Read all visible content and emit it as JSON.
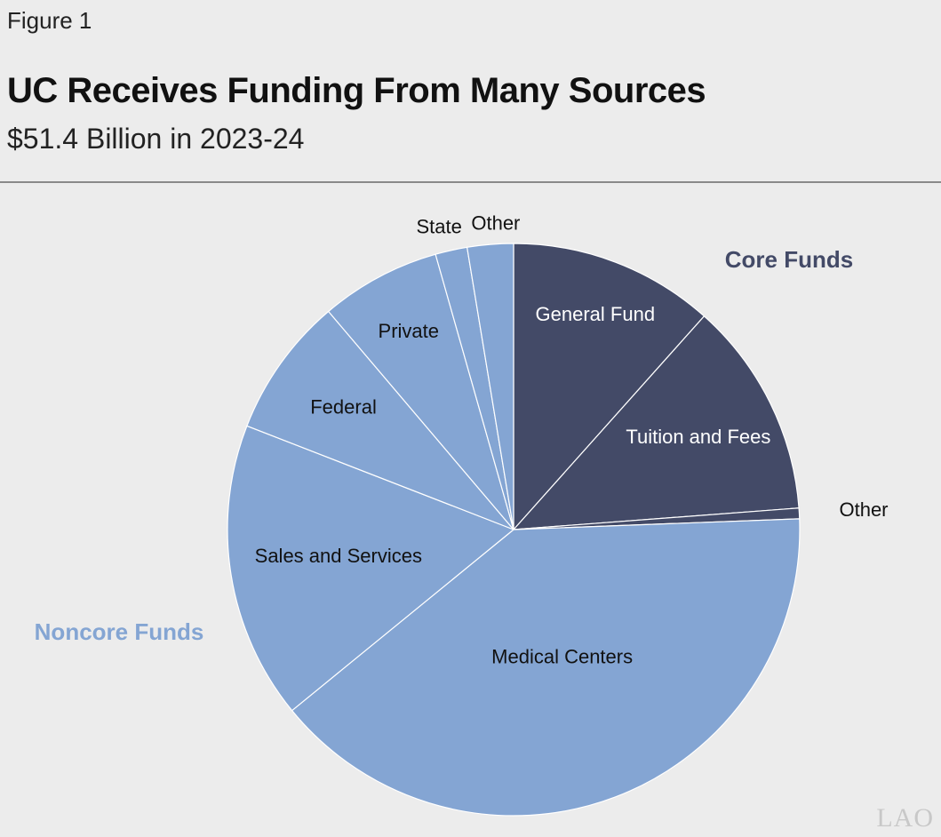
{
  "figure_label": "Figure 1",
  "colors": {
    "core": "#434a67",
    "noncore": "#84a5d3",
    "core_label": "#434a67",
    "noncore_label": "#84a5d3",
    "background": "#ececec",
    "slice_border": "#ffffff",
    "logo": "#c8c8c8"
  },
  "logo_text": "LAO",
  "chart_data": {
    "type": "pie",
    "title": "UC Receives Funding From Many Sources",
    "subtitle": "$51.4 Billion in 2023-24",
    "unit": "percent of total",
    "start_angle_deg": 0,
    "direction": "clockwise",
    "groups": [
      {
        "name": "Core Funds",
        "key": "core"
      },
      {
        "name": "Noncore Funds",
        "key": "noncore"
      }
    ],
    "slices": [
      {
        "label": "General Fund",
        "value": 11.6,
        "group": "core"
      },
      {
        "label": "Tuition and Fees",
        "value": 12.2,
        "group": "core"
      },
      {
        "label": "Other",
        "value": 0.6,
        "group": "core"
      },
      {
        "label": "Medical Centers",
        "value": 39.7,
        "group": "noncore"
      },
      {
        "label": "Sales and Services",
        "value": 16.8,
        "group": "noncore"
      },
      {
        "label": "Federal",
        "value": 7.9,
        "group": "noncore"
      },
      {
        "label": "Private",
        "value": 6.8,
        "group": "noncore"
      },
      {
        "label": "State",
        "value": 1.8,
        "group": "noncore"
      },
      {
        "label": "Other",
        "value": 2.6,
        "group": "noncore"
      }
    ]
  }
}
